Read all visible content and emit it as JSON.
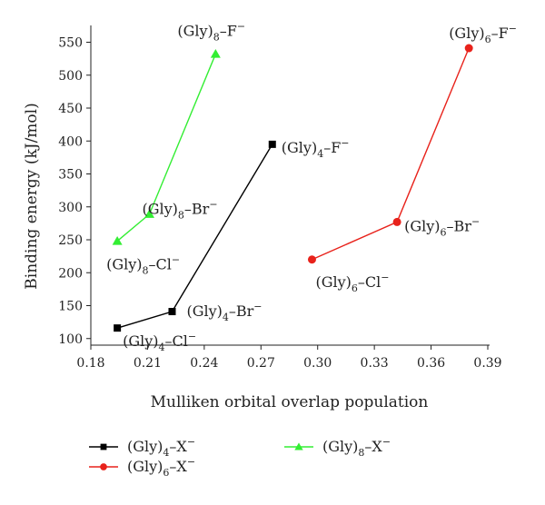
{
  "chart_data": {
    "type": "line",
    "title": "",
    "xlabel": "Mulliken orbital overlap population",
    "ylabel": "Binding energy (kJ/mol)",
    "xlim": [
      0.18,
      0.39
    ],
    "ylim": [
      90,
      570
    ],
    "xticks": [
      0.18,
      0.21,
      0.24,
      0.27,
      0.3,
      0.33,
      0.36,
      0.39
    ],
    "xtick_labels": [
      "0.18",
      "0.21",
      "0.24",
      "0.27",
      "0.30",
      "0.33",
      "0.36",
      "0.39"
    ],
    "yticks": [
      100,
      150,
      200,
      250,
      300,
      350,
      400,
      450,
      500,
      550
    ],
    "ytick_labels": [
      "100",
      "150",
      "200",
      "250",
      "300",
      "350",
      "400",
      "450",
      "500",
      "550"
    ],
    "grid": false,
    "legend_position": "bottom",
    "series": [
      {
        "id": "gly4",
        "name": "(Gly)4–X−",
        "name_parts": {
          "base": "(Gly)",
          "sub": "4",
          "mid": "–X",
          "sup": "−"
        },
        "color": "#000000",
        "marker": "square",
        "points": [
          {
            "x": 0.194,
            "y": 116,
            "label": {
              "base": "(Gly)",
              "sub": "4",
              "mid": "–Cl",
              "sup": "−"
            }
          },
          {
            "x": 0.223,
            "y": 141,
            "label": {
              "base": "(Gly)",
              "sub": "4",
              "mid": "–Br",
              "sup": "−"
            }
          },
          {
            "x": 0.276,
            "y": 395,
            "label": {
              "base": "(Gly)",
              "sub": "4",
              "mid": "–F",
              "sup": "−"
            }
          }
        ]
      },
      {
        "id": "gly6",
        "name": "(Gly)6–X−",
        "name_parts": {
          "base": "(Gly)",
          "sub": "6",
          "mid": "–X",
          "sup": "−"
        },
        "color": "#e8221b",
        "marker": "circle",
        "points": [
          {
            "x": 0.297,
            "y": 220,
            "label": {
              "base": "(Gly)",
              "sub": "6",
              "mid": "–Cl",
              "sup": "−"
            }
          },
          {
            "x": 0.342,
            "y": 277,
            "label": {
              "base": "(Gly)",
              "sub": "6",
              "mid": "–Br",
              "sup": "−"
            }
          },
          {
            "x": 0.38,
            "y": 541,
            "label": {
              "base": "(Gly)",
              "sub": "6",
              "mid": "–F",
              "sup": "−"
            }
          }
        ]
      },
      {
        "id": "gly8",
        "name": "(Gly)8–X−",
        "name_parts": {
          "base": "(Gly)",
          "sub": "8",
          "mid": "–X",
          "sup": "−"
        },
        "color": "#33ee33",
        "marker": "triangle",
        "points": [
          {
            "x": 0.194,
            "y": 248,
            "label": {
              "base": "(Gly)",
              "sub": "8",
              "mid": "–Cl",
              "sup": "−"
            }
          },
          {
            "x": 0.211,
            "y": 289,
            "label": {
              "base": "(Gly)",
              "sub": "8",
              "mid": "–Br",
              "sup": "−"
            }
          },
          {
            "x": 0.246,
            "y": 532,
            "label": {
              "base": "(Gly)",
              "sub": "8",
              "mid": "–F",
              "sup": "−"
            }
          }
        ]
      }
    ]
  }
}
